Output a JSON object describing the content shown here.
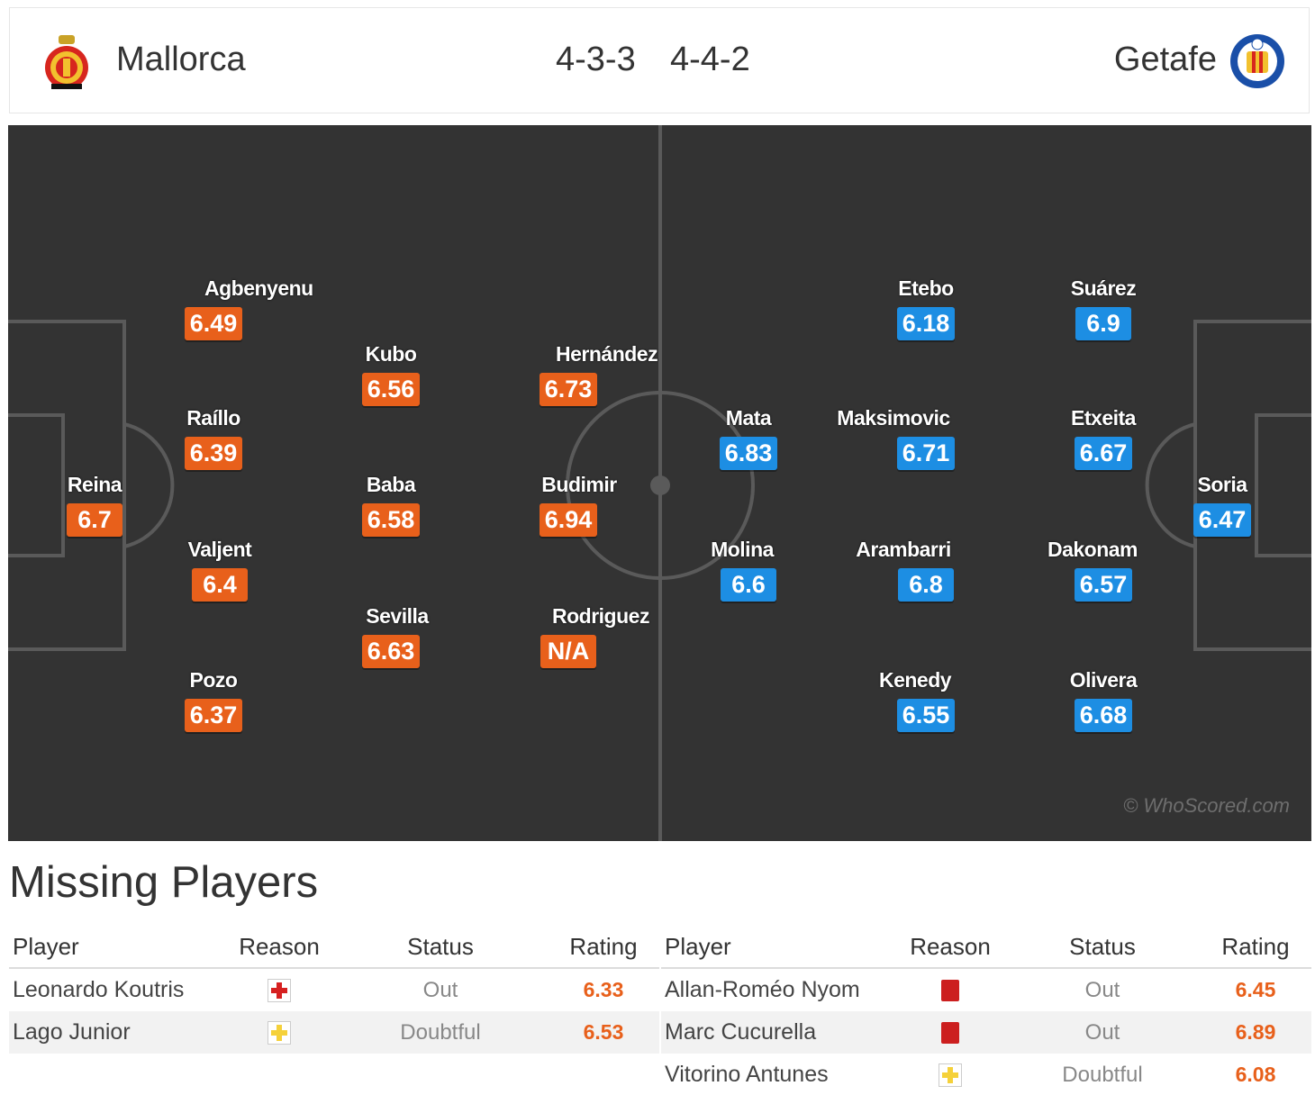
{
  "header": {
    "home_team": "Mallorca",
    "home_formation": "4-3-3",
    "away_formation": "4-4-2",
    "away_team": "Getafe"
  },
  "colors": {
    "home": "#e8601b",
    "away": "#1d8ee3",
    "pitch": "#333333"
  },
  "pitch": {
    "watermark": "© WhoScored.com",
    "home_players": [
      {
        "name": "Reina",
        "rating": "6.7"
      },
      {
        "name": "Agbenyenu",
        "rating": "6.49"
      },
      {
        "name": "Raíllo",
        "rating": "6.39"
      },
      {
        "name": "Valjent",
        "rating": "6.4"
      },
      {
        "name": "Pozo",
        "rating": "6.37"
      },
      {
        "name": "Kubo",
        "rating": "6.56"
      },
      {
        "name": "Baba",
        "rating": "6.58"
      },
      {
        "name": "Sevilla",
        "rating": "6.63"
      },
      {
        "name": "Hernández",
        "rating": "6.73"
      },
      {
        "name": "Budimir",
        "rating": "6.94"
      },
      {
        "name": "Rodriguez",
        "rating": "N/A"
      }
    ],
    "away_players": [
      {
        "name": "Soria",
        "rating": "6.47"
      },
      {
        "name": "Suárez",
        "rating": "6.9"
      },
      {
        "name": "Etxeita",
        "rating": "6.67"
      },
      {
        "name": "Dakonam",
        "rating": "6.57"
      },
      {
        "name": "Olivera",
        "rating": "6.68"
      },
      {
        "name": "Etebo",
        "rating": "6.18"
      },
      {
        "name": "Maksimovic",
        "rating": "6.71"
      },
      {
        "name": "Arambarri",
        "rating": "6.8"
      },
      {
        "name": "Kenedy",
        "rating": "6.55"
      },
      {
        "name": "Mata",
        "rating": "6.83"
      },
      {
        "name": "Molina",
        "rating": "6.6"
      }
    ]
  },
  "missing": {
    "title": "Missing Players",
    "columns": {
      "player": "Player",
      "reason": "Reason",
      "status": "Status",
      "rating": "Rating"
    },
    "home": [
      {
        "player": "Leonardo Koutris",
        "reason": "injury-icon",
        "status": "Out",
        "rating": "6.33"
      },
      {
        "player": "Lago Junior",
        "reason": "doubtful-icon",
        "status": "Doubtful",
        "rating": "6.53"
      }
    ],
    "away": [
      {
        "player": "Allan-Roméo Nyom",
        "reason": "red-card-icon",
        "status": "Out",
        "rating": "6.45"
      },
      {
        "player": "Marc Cucurella",
        "reason": "red-card-icon",
        "status": "Out",
        "rating": "6.89"
      },
      {
        "player": "Vitorino Antunes",
        "reason": "doubtful-icon",
        "status": "Doubtful",
        "rating": "6.08"
      }
    ]
  }
}
